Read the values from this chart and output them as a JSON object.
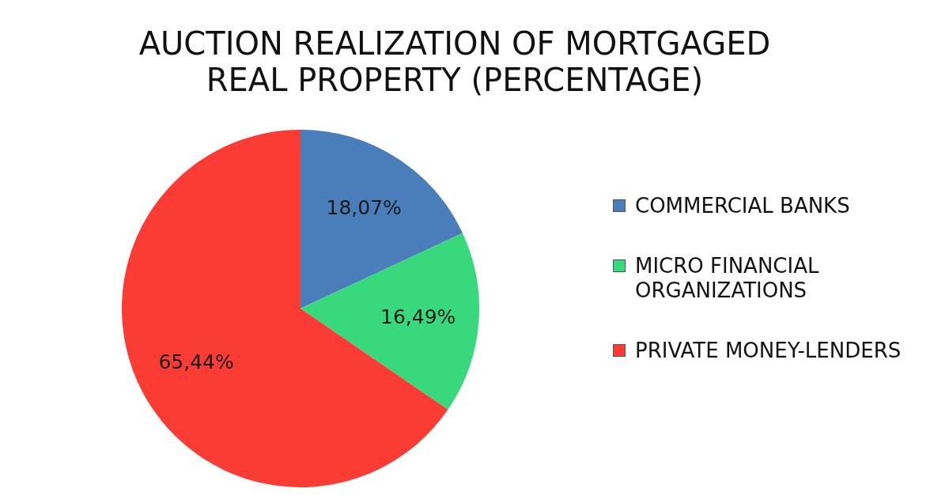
{
  "chart_data": {
    "type": "pie",
    "title": "AUCTION REALIZATION OF MORTGAGED REAL PROPERTY (PERCENTAGE)",
    "categories": [
      "COMMERCIAL BANKS",
      "MICRO FINANCIAL ORGANIZATIONS",
      "PRIVATE MONEY-LENDERS"
    ],
    "values": [
      18.07,
      16.49,
      65.44
    ],
    "colors": [
      "#4a7ebb",
      "#38d97c",
      "#fa3c34"
    ],
    "value_labels": [
      "18,07%",
      "16,49%",
      "65,44%"
    ],
    "legend": "right"
  }
}
